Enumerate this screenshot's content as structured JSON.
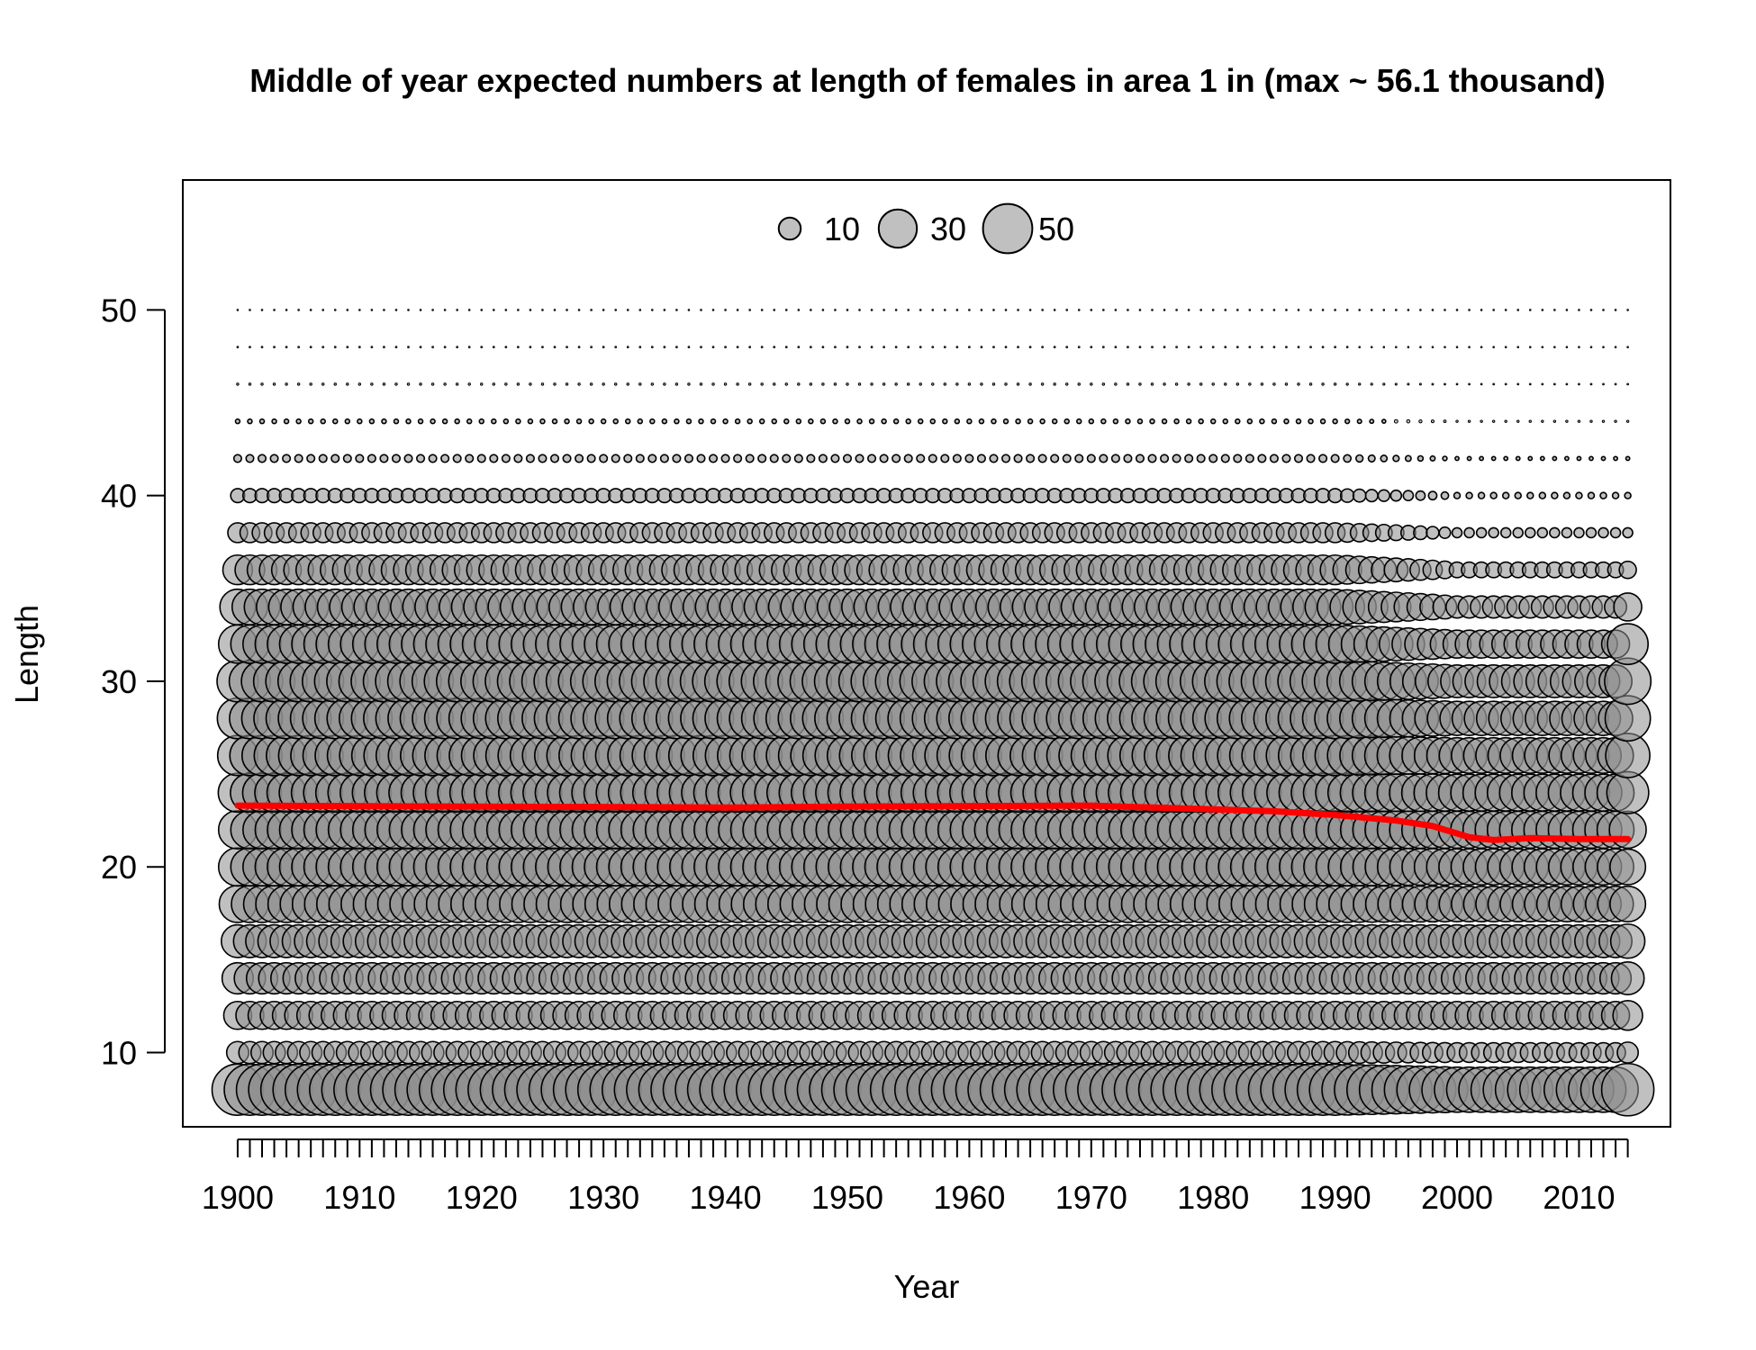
{
  "chart_data": {
    "type": "bubble",
    "title": "Middle of year expected numbers at length of females in area 1 in (max ~ 56.1 thousand)",
    "xlabel": "Year",
    "ylabel": "Length",
    "xlim": [
      1895.5,
      2017.5
    ],
    "ylim": [
      6,
      57
    ],
    "x_ticks": [
      1900,
      1910,
      1920,
      1930,
      1940,
      1950,
      1960,
      1970,
      1980,
      1990,
      2000,
      2010
    ],
    "x_minor_tick_step": 1,
    "y_ticks": [
      10,
      20,
      30,
      40,
      50
    ],
    "years": {
      "start": 1900,
      "end": 2014,
      "step": 1
    },
    "length_bins": [
      8,
      10,
      12,
      14,
      16,
      18,
      20,
      22,
      24,
      26,
      28,
      30,
      32,
      34,
      36,
      38,
      40,
      42,
      44,
      46,
      48,
      50
    ],
    "max_value_thousand": 56.1,
    "bubble_fill": "#8c8c8c",
    "bubble_fill_alpha": 0.55,
    "bubble_stroke": "#000000",
    "size_legend": {
      "position": "top-center",
      "values": [
        10,
        30,
        50
      ],
      "labels": [
        "10",
        "30",
        "50"
      ],
      "fill": "#c0c0c0"
    },
    "abundance_profiles": {
      "early": {
        "years": [
          1900,
          1990
        ],
        "values": {
          "8": 54,
          "10": 10,
          "12": 16,
          "14": 20,
          "16": 22,
          "18": 28,
          "20": 30,
          "22": 30,
          "24": 31,
          "26": 33,
          "28": 34,
          "30": 35,
          "32": 30,
          "34": 26,
          "36": 18,
          "38": 8,
          "40": 4,
          "42": 1.2,
          "44": 0.4,
          "46": 0.1,
          "48": 0.05,
          "50": 0.03
        }
      },
      "late": {
        "years": [
          2000,
          2014
        ],
        "values": {
          "8": 42,
          "10": 8,
          "12": 16,
          "14": 20,
          "16": 22,
          "18": 26,
          "20": 27,
          "22": 28,
          "24": 28,
          "26": 26,
          "28": 24,
          "30": 22,
          "32": 16,
          "34": 10,
          "36": 5,
          "38": 2,
          "40": 0.8,
          "42": 0.3,
          "44": 0.1,
          "46": 0.05,
          "48": 0.02,
          "50": 0.01
        }
      },
      "final_year": {
        "year": 2014,
        "values": {
          "8": 56.1,
          "10": 9,
          "12": 18,
          "14": 22,
          "16": 24,
          "18": 26,
          "20": 26,
          "22": 28,
          "24": 36,
          "26": 40,
          "28": 42,
          "30": 44,
          "32": 34,
          "34": 16,
          "36": 6,
          "38": 2,
          "40": 0.8,
          "42": 0.3,
          "44": 0.1,
          "46": 0.05,
          "48": 0.02,
          "50": 0.01
        }
      }
    },
    "mean_length_series": {
      "name": "mean length",
      "color": "#ff0000",
      "points": [
        {
          "x": 1900,
          "y": 23.3
        },
        {
          "x": 1940,
          "y": 23.2
        },
        {
          "x": 1950,
          "y": 23.25
        },
        {
          "x": 1970,
          "y": 23.3
        },
        {
          "x": 1980,
          "y": 23.1
        },
        {
          "x": 1985,
          "y": 23.0
        },
        {
          "x": 1990,
          "y": 22.8
        },
        {
          "x": 1995,
          "y": 22.5
        },
        {
          "x": 1998,
          "y": 22.2
        },
        {
          "x": 2001,
          "y": 21.6
        },
        {
          "x": 2003,
          "y": 21.45
        },
        {
          "x": 2006,
          "y": 21.55
        },
        {
          "x": 2010,
          "y": 21.5
        },
        {
          "x": 2014,
          "y": 21.5
        }
      ]
    },
    "grid": false,
    "box": true
  }
}
